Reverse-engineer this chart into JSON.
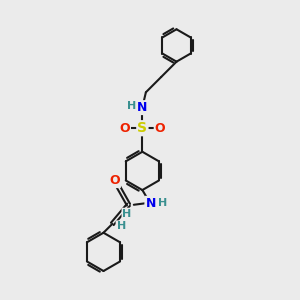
{
  "bg_color": "#ebebeb",
  "bond_color": "#1a1a1a",
  "N_color": "#0000ee",
  "O_color": "#ee2200",
  "S_color": "#cccc00",
  "H_color": "#3a9090",
  "line_width": 1.5,
  "fig_w": 3.0,
  "fig_h": 3.0,
  "dpi": 100,
  "xlim": [
    0,
    10
  ],
  "ylim": [
    0,
    10
  ]
}
